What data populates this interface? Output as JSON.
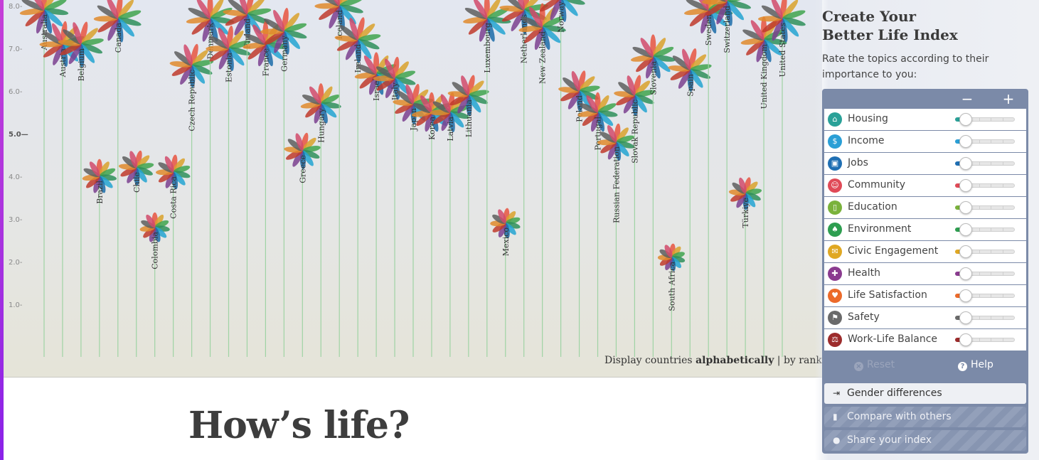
{
  "chart": {
    "y_ticks": [
      "8.0-",
      "7.0-",
      "6.0-",
      "5.0—",
      "4.0-",
      "3.0-",
      "2.0-",
      "1.0-"
    ],
    "petal_colors": [
      "#e8543f",
      "#d9a12b",
      "#3fa34d",
      "#2f8f5a",
      "#23a3d1",
      "#1b6ba8",
      "#7b3f8f",
      "#c0392b",
      "#e08a2c",
      "#5e5e5e",
      "#d14a6b"
    ],
    "countries": [
      {
        "name": "Australia",
        "score": 7.9
      },
      {
        "name": "Austria",
        "score": 7.1
      },
      {
        "name": "Belgium",
        "score": 7.1
      },
      {
        "name": "Brazil",
        "score": 4.0
      },
      {
        "name": "Canada",
        "score": 7.7
      },
      {
        "name": "Chile",
        "score": 4.2
      },
      {
        "name": "Colombia",
        "score": 2.8
      },
      {
        "name": "Costa Rica",
        "score": 4.1
      },
      {
        "name": "Czech Republic",
        "score": 6.6
      },
      {
        "name": "Denmark",
        "score": 7.7
      },
      {
        "name": "Estonia",
        "score": 7.0
      },
      {
        "name": "Finland",
        "score": 7.8
      },
      {
        "name": "France",
        "score": 7.1
      },
      {
        "name": "Germany",
        "score": 7.4
      },
      {
        "name": "Greece",
        "score": 4.6
      },
      {
        "name": "Hungary",
        "score": 5.7
      },
      {
        "name": "Iceland",
        "score": 8.0
      },
      {
        "name": "Ireland",
        "score": 7.2
      },
      {
        "name": "Israel",
        "score": 6.4
      },
      {
        "name": "Italy",
        "score": 6.3
      },
      {
        "name": "Japan",
        "score": 5.7
      },
      {
        "name": "Korea",
        "score": 5.5
      },
      {
        "name": "Latvia",
        "score": 5.5
      },
      {
        "name": "Lithuania",
        "score": 5.9
      },
      {
        "name": "Luxembourg",
        "score": 7.7
      },
      {
        "name": "Mexico",
        "score": 2.9
      },
      {
        "name": "Netherlands",
        "score": 7.9
      },
      {
        "name": "New Zealand",
        "score": 7.5
      },
      {
        "name": "Norway",
        "score": 8.2
      },
      {
        "name": "Poland",
        "score": 6.0
      },
      {
        "name": "Portugal",
        "score": 5.5
      },
      {
        "name": "Russian Federation",
        "score": 4.8
      },
      {
        "name": "Slovak Republic",
        "score": 5.9
      },
      {
        "name": "Slovenia",
        "score": 6.8
      },
      {
        "name": "South Africa",
        "score": 2.1
      },
      {
        "name": "Spain",
        "score": 6.5
      },
      {
        "name": "Sweden",
        "score": 7.9
      },
      {
        "name": "Switzerland",
        "score": 8.1
      },
      {
        "name": "Türkiye",
        "score": 3.6
      },
      {
        "name": "United Kingdom",
        "score": 7.2
      },
      {
        "name": "United States",
        "score": 7.7
      }
    ]
  },
  "sort": {
    "prefix": "Display countries",
    "alphabetically": "alphabetically",
    "separator": "|",
    "by_rank": "by rank"
  },
  "headline": "How’s life?",
  "panel": {
    "title_line1": "Create Your",
    "title_line2": "Better Life Index",
    "subtitle": "Rate the topics according to their importance to you:",
    "minus": "−",
    "plus": "+",
    "topics": [
      {
        "label": "Housing",
        "icon": "house-icon",
        "glyph": "⌂",
        "color": "#2aa198",
        "value": 0
      },
      {
        "label": "Income",
        "icon": "money-icon",
        "glyph": "$",
        "color": "#2a9fd6",
        "value": 0
      },
      {
        "label": "Jobs",
        "icon": "briefcase-icon",
        "glyph": "▣",
        "color": "#1f6fb3",
        "value": 0
      },
      {
        "label": "Community",
        "icon": "people-icon",
        "glyph": "☺",
        "color": "#e04a57",
        "value": 0
      },
      {
        "label": "Education",
        "icon": "book-icon",
        "glyph": "▯",
        "color": "#7ab23c",
        "value": 0
      },
      {
        "label": "Environment",
        "icon": "tree-icon",
        "glyph": "♠",
        "color": "#2e9e50",
        "value": 0
      },
      {
        "label": "Civic Engagement",
        "icon": "envelope-icon",
        "glyph": "✉",
        "color": "#e0a823",
        "value": 0
      },
      {
        "label": "Health",
        "icon": "cross-icon",
        "glyph": "✚",
        "color": "#8a3b8f",
        "value": 0
      },
      {
        "label": "Life Satisfaction",
        "icon": "heart-icon",
        "glyph": "♥",
        "color": "#ec6a2a",
        "value": 0
      },
      {
        "label": "Safety",
        "icon": "runner-icon",
        "glyph": "⚑",
        "color": "#6a6a6a",
        "value": 0
      },
      {
        "label": "Work-Life Balance",
        "icon": "scale-icon",
        "glyph": "⚖",
        "color": "#9c2b2b",
        "value": 0
      }
    ],
    "reset": "Reset",
    "help": "Help",
    "gender": "Gender differences",
    "compare": "Compare with others",
    "share": "Share your index"
  }
}
